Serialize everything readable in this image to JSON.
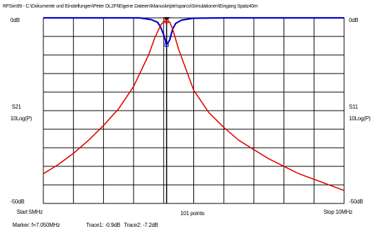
{
  "title": "RFSim99 - C:\\Dokumente und Einstellungen\\Peter DL2FI\\Eigene Dateien\\Manuskripte\\sparco\\Simulationen\\Eingang Spatz40m",
  "left_axis": {
    "top": "0dB",
    "bottom": "-50dB",
    "name": "S21",
    "unit": "10Log(P)"
  },
  "right_axis": {
    "top": "0dB",
    "bottom": "-50dB",
    "name": "S11",
    "unit": "10Log(P)"
  },
  "footer": {
    "start": "Start 5MHz",
    "points": "101 points",
    "stop": "Stop 10MHz",
    "marker": "Marker: f=7.050MHz",
    "trace1": "Trace1: -0.9dB",
    "trace2": "Trace2: -7.2dB"
  },
  "colors": {
    "trace1": "#e00000",
    "trace2": "#0000cc",
    "grid": "#000000",
    "marker": "#000000"
  },
  "chart_data": {
    "type": "line",
    "x_unit": "MHz",
    "xlim": [
      5,
      10
    ],
    "ylim": [
      -50,
      0
    ],
    "grid": true,
    "grid_divisions": {
      "x": 10,
      "y": 10
    },
    "marker_x": 7.05,
    "series": [
      {
        "name": "S21",
        "color": "#e00000",
        "x": [
          5.0,
          5.25,
          5.5,
          5.75,
          6.0,
          6.25,
          6.5,
          6.75,
          6.85,
          6.95,
          7.0,
          7.05,
          7.1,
          7.15,
          7.25,
          7.5,
          7.75,
          8.0,
          8.25,
          8.5,
          8.75,
          9.0,
          9.25,
          9.5,
          9.75,
          10.0
        ],
        "values": [
          -42,
          -39.5,
          -36.5,
          -33,
          -29,
          -24.5,
          -18.5,
          -10,
          -5.5,
          -2,
          -1,
          -0.9,
          -1.1,
          -3,
          -8.5,
          -19.5,
          -25.5,
          -29.5,
          -33,
          -35.5,
          -38,
          -40,
          -42,
          -43.5,
          -45,
          -46.5
        ]
      },
      {
        "name": "S11",
        "color": "#0000cc",
        "x": [
          5.0,
          6.0,
          6.6,
          6.8,
          6.9,
          6.95,
          7.0,
          7.05,
          7.1,
          7.15,
          7.2,
          7.3,
          7.5,
          8.0,
          9.0,
          10.0
        ],
        "values": [
          0,
          0,
          0,
          -0.5,
          -1.2,
          -2.5,
          -4.5,
          -7.2,
          -6,
          -3,
          -1.5,
          -0.6,
          -0.1,
          0,
          0,
          0
        ]
      }
    ]
  }
}
